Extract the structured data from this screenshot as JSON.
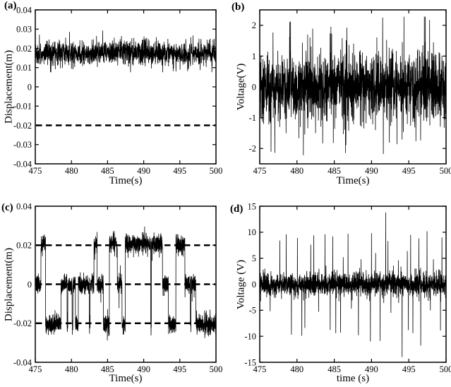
{
  "figure_title": "",
  "chart_data": [
    {
      "panel": "a",
      "label": "(a)",
      "type": "line",
      "xlabel": "Time(s)",
      "ylabel": "Displacement(m)",
      "xlim": [
        475,
        500
      ],
      "ylim": [
        -0.04,
        0.04
      ],
      "xticks": [
        475,
        480,
        485,
        490,
        495,
        500
      ],
      "ytick_values": [
        0.04,
        0.03,
        0.02,
        0.01,
        0,
        -0.01,
        -0.02,
        -0.03,
        -0.04
      ],
      "ytick_labels": [
        "0.04",
        "0.03",
        "0.02",
        "0.01",
        "0",
        "-0.01",
        "-0.02",
        "-0.03",
        "-0.04"
      ],
      "grid": false,
      "legend": null,
      "color": "#000000",
      "dashed_lines": [
        -0.02
      ],
      "series": {
        "kind": "noise",
        "description": "Dense measurement noise band of displacement fluctuating about 0.0175 m (range ~0.008 to 0.030 m); dashed reference line at -0.02 m",
        "mean": 0.0175,
        "std": 0.003,
        "tail_std": 0.0051,
        "tail_prob": 0.12,
        "min": 0.0076,
        "max": 0.0306,
        "points": 1500,
        "seed": 7,
        "spikes": []
      }
    },
    {
      "panel": "b",
      "label": "(b)",
      "type": "line",
      "xlabel": "Time(s)",
      "ylabel": "Voltage(V)",
      "xlim": [
        475,
        500
      ],
      "ylim": [
        -2.5,
        2.5
      ],
      "xticks": [
        475,
        480,
        485,
        490,
        495,
        500
      ],
      "ytick_values": [
        2,
        1,
        0,
        -1,
        -2
      ],
      "ytick_labels": [
        "2",
        "1",
        "0",
        "-1",
        "-2"
      ],
      "grid": false,
      "legend": null,
      "color": "#000000",
      "dashed_lines": [],
      "series": {
        "kind": "noise",
        "description": "Zero-mean broadband voltage noise, dense core about ±1 V, excursions to about ±2.2 V (max ~+2.25 V near t=491.5, min ~-2.15 V near t=486.5)",
        "mean": 0,
        "std": 0.5,
        "tail_std": 0.95,
        "tail_prob": 0.17,
        "min": -2.22,
        "max": 2.28,
        "points": 1700,
        "seed": 21,
        "spikes": [
          [
            486.5,
            -2.15
          ],
          [
            491.5,
            2.25
          ]
        ]
      }
    },
    {
      "panel": "c",
      "label": "(c)",
      "type": "line",
      "xlabel": "Time(s)",
      "ylabel": "Displacement(m)",
      "xlim": [
        475,
        500
      ],
      "ylim": [
        -0.04,
        0.04
      ],
      "xticks": [
        475,
        480,
        485,
        490,
        495,
        500
      ],
      "ytick_values": [
        0.04,
        0.02,
        0,
        -0.02,
        -0.04
      ],
      "ytick_labels": [
        "0.04",
        "0.02",
        "0",
        "-0.02",
        "-0.04"
      ],
      "grid": false,
      "legend": null,
      "color": "#000000",
      "dashed_lines": [
        0.02,
        0,
        -0.02
      ],
      "series": {
        "kind": "levels",
        "description": "Tri-stable displacement switching among levels +0.02, 0 and -0.02 m with superimposed noise; dashed reference lines at the three levels",
        "noise_std": 0.0023,
        "tail_std": 0.0038,
        "tail_prob": 0.14,
        "clamp": [
          -0.0288,
          0.0296
        ],
        "points": 2300,
        "seed": 33,
        "levels": [
          0.0205,
          0,
          -0.0205
        ],
        "segments": [
          [
            475.0,
            0
          ],
          [
            475.78,
            0.0205
          ],
          [
            476.42,
            -0.0205
          ],
          [
            478.55,
            0
          ],
          [
            479.4,
            -0.0205
          ],
          [
            479.5,
            0
          ],
          [
            480.1,
            -0.0205
          ],
          [
            480.2,
            0
          ],
          [
            480.55,
            -0.0205
          ],
          [
            480.95,
            0
          ],
          [
            482.48,
            -0.0205
          ],
          [
            482.58,
            0
          ],
          [
            483.12,
            0.0205
          ],
          [
            483.55,
            0
          ],
          [
            484.42,
            -0.0205
          ],
          [
            485.25,
            0.0205
          ],
          [
            486.35,
            0
          ],
          [
            487.0,
            -0.0205
          ],
          [
            487.45,
            0.0205
          ],
          [
            490.97,
            -0.0205
          ],
          [
            491.06,
            0.0205
          ],
          [
            492.6,
            0
          ],
          [
            493.42,
            -0.0205
          ],
          [
            494.45,
            0.0205
          ],
          [
            495.7,
            0
          ],
          [
            496.45,
            -0.0205
          ],
          [
            496.55,
            0
          ],
          [
            497.2,
            -0.0205
          ]
        ]
      }
    },
    {
      "panel": "d",
      "label": "(d)",
      "type": "line",
      "xlabel": "time (s)",
      "ylabel": "Voltage (V)",
      "xlim": [
        475,
        500
      ],
      "ylim": [
        -15,
        15
      ],
      "xticks": [
        475,
        480,
        485,
        490,
        495,
        500
      ],
      "ytick_values": [
        15,
        10,
        5,
        0,
        -5,
        -10,
        -15
      ],
      "ytick_labels": [
        "15",
        "10",
        "5",
        "0",
        "-5",
        "-10",
        "-15"
      ],
      "grid": false,
      "legend": null,
      "color": "#000000",
      "dashed_lines": [],
      "series": {
        "kind": "noise",
        "description": "Zero-mean voltage noise band about ±3 V with intermittent sharp spikes to ~±10 V; extreme spikes +13.8 V near t=492 and -14 V near t=494",
        "mean": 0,
        "std": 1.05,
        "tail_std": 1.8,
        "tail_prob": 0.06,
        "min": -3.6,
        "max": 3.6,
        "points": 1900,
        "seed": 55,
        "spikes": [
          [
            476.4,
            -5.2
          ],
          [
            477.7,
            8.4
          ],
          [
            478.55,
            9.6
          ],
          [
            479.25,
            -9.7
          ],
          [
            480.05,
            8.9
          ],
          [
            480.65,
            -9.9
          ],
          [
            481.05,
            -8.4
          ],
          [
            481.85,
            7.6
          ],
          [
            482.25,
            9.4
          ],
          [
            482.9,
            -5.3
          ],
          [
            483.75,
            9.6
          ],
          [
            484.45,
            -8.8
          ],
          [
            484.8,
            9.2
          ],
          [
            485.2,
            -9.4
          ],
          [
            485.85,
            -9.3
          ],
          [
            486.2,
            5.2
          ],
          [
            486.85,
            9.7
          ],
          [
            487.3,
            -4.7
          ],
          [
            488.25,
            -9.8
          ],
          [
            488.6,
            4.8
          ],
          [
            489.85,
            -11.0
          ],
          [
            490.0,
            9.8
          ],
          [
            490.55,
            6.0
          ],
          [
            491.15,
            -10.9
          ],
          [
            491.9,
            13.8
          ],
          [
            492.2,
            8.3
          ],
          [
            492.6,
            -5.5
          ],
          [
            493.6,
            4.6
          ],
          [
            494.1,
            -14.0
          ],
          [
            494.8,
            6.4
          ],
          [
            494.95,
            -8.8
          ],
          [
            495.25,
            9.5
          ],
          [
            495.55,
            -9.4
          ],
          [
            496.35,
            8.8
          ],
          [
            496.6,
            -11.8
          ],
          [
            497.45,
            10.2
          ],
          [
            497.9,
            -5.0
          ],
          [
            498.3,
            4.8
          ],
          [
            499.25,
            -8.9
          ],
          [
            499.45,
            9.0
          ]
        ]
      }
    }
  ]
}
